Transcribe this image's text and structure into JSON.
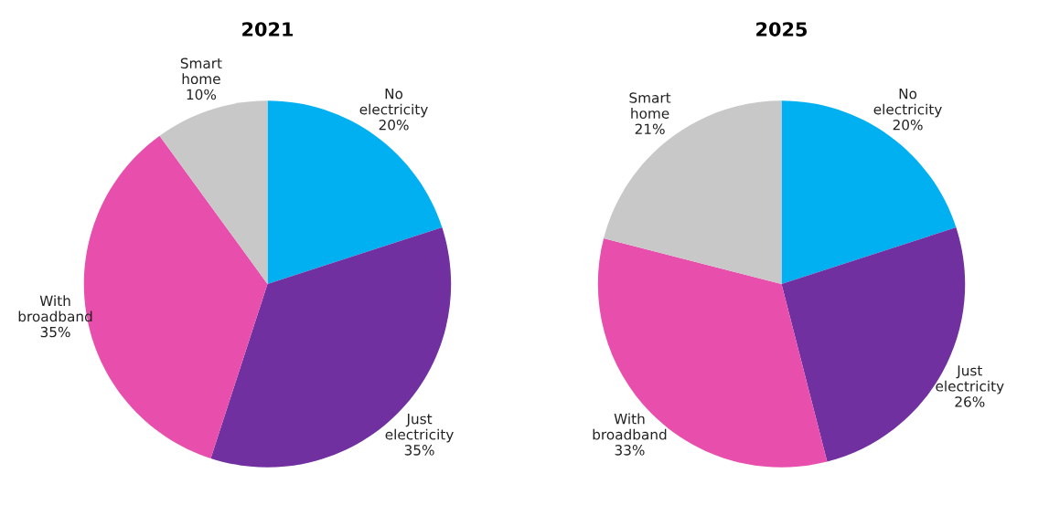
{
  "chart_data": [
    {
      "type": "pie",
      "title": "2021",
      "categories": [
        "No electricity",
        "Just electricity",
        "With broadband",
        "Smart home"
      ],
      "values": [
        20,
        35,
        35,
        10
      ],
      "colors": [
        "#00b0f0",
        "#7030a0",
        "#e84fad",
        "#c8c8c8"
      ],
      "value_labels": [
        "20%",
        "35%",
        "35%",
        "10%"
      ]
    },
    {
      "type": "pie",
      "title": "2025",
      "categories": [
        "No electricity",
        "Just electricity",
        "With broadband",
        "Smart home"
      ],
      "values": [
        20,
        26,
        33,
        21
      ],
      "colors": [
        "#00b0f0",
        "#7030a0",
        "#e84fad",
        "#c8c8c8"
      ],
      "value_labels": [
        "20%",
        "26%",
        "33%",
        "21%"
      ]
    }
  ]
}
